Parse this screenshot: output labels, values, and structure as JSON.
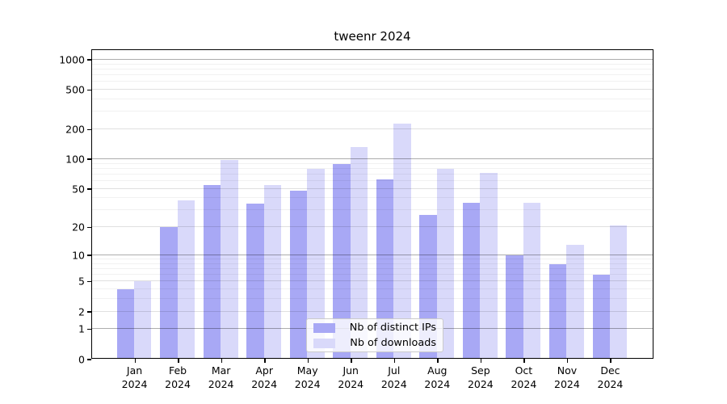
{
  "title": "tweenr 2024",
  "chart_data": {
    "type": "bar",
    "title": "tweenr 2024",
    "months": [
      "Jan",
      "Feb",
      "Mar",
      "Apr",
      "May",
      "Jun",
      "Jul",
      "Aug",
      "Sep",
      "Oct",
      "Nov",
      "Dec"
    ],
    "year": "2024",
    "series": [
      {
        "name": "Nb of distinct IPs",
        "color": "#a8a8f5",
        "values": [
          4,
          20,
          55,
          35,
          48,
          90,
          62,
          27,
          36,
          10,
          8,
          6
        ]
      },
      {
        "name": "Nb of downloads",
        "color": "#d9d9fa",
        "values": [
          5,
          38,
          98,
          55,
          80,
          132,
          230,
          79,
          72,
          36,
          13,
          21
        ]
      }
    ],
    "y_scale": "log1p",
    "y_ticks": [
      0,
      1,
      2,
      5,
      10,
      20,
      50,
      100,
      200,
      500,
      1000
    ],
    "y_major_ticks": [
      1,
      10,
      100,
      1000
    ],
    "y_minor_ticks": [
      3,
      4,
      6,
      7,
      8,
      9,
      30,
      40,
      60,
      70,
      80,
      90,
      300,
      400,
      600,
      700,
      800,
      900
    ],
    "y_axis_top_value": 1260,
    "grid": true,
    "legend_position": "lower center"
  },
  "legend": {
    "items": [
      {
        "label": "Nb of distinct IPs"
      },
      {
        "label": "Nb of downloads"
      }
    ]
  }
}
